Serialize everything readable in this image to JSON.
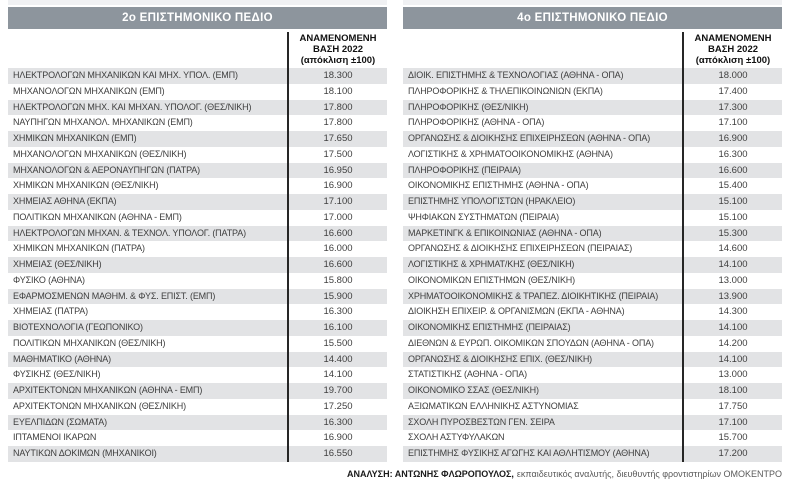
{
  "colors": {
    "title_bar_bg": "#8d959d",
    "title_text": "#ffffff",
    "row_stripe": "#e2e3e5",
    "divider_line": "#262626",
    "body_text": "#3e3e3e"
  },
  "value_header_lines": [
    "ΑΝΑΜΕΝΟΜΕΝΗ",
    "ΒΑΣΗ 2022",
    "(απόκλιση ±100)"
  ],
  "tables": [
    {
      "title": "2ο ΕΠΙΣΤΗΜΟΝΙΚΟ ΠΕΔΙΟ",
      "rows": [
        {
          "name": "ΗΛΕΚΤΡΟΛΟΓΩΝ ΜΗΧΑΝΙΚΩΝ ΚΑΙ ΜΗΧ. ΥΠΟΛ. (ΕΜΠ)",
          "value": "18.300"
        },
        {
          "name": "ΜΗΧΑΝΟΛΟΓΩΝ ΜΗΧΑΝΙΚΩΝ (ΕΜΠ)",
          "value": "18.100"
        },
        {
          "name": "ΗΛΕΚΤΡΟΛΟΓΩΝ ΜΗΧ. ΚΑΙ ΜΗΧΑΝ. ΥΠΟΛΟΓ. (ΘΕΣ/ΝΙΚΗ)",
          "value": "17.800"
        },
        {
          "name": "ΝΑΥΠΗΓΩΝ ΜΗΧΑΝΟΛ. ΜΗΧΑΝΙΚΩΝ (ΕΜΠ)",
          "value": "17.800"
        },
        {
          "name": "ΧΗΜΙΚΩΝ ΜΗΧΑΝΙΚΩΝ (ΕΜΠ)",
          "value": "17.650"
        },
        {
          "name": "ΜΗΧΑΝΟΛΟΓΩΝ ΜΗΧΑΝΙΚΩΝ (ΘΕΣ/ΝΙΚΗ)",
          "value": "17.500"
        },
        {
          "name": "ΜΗΧΑΝΟΛΟΓΩΝ & ΑΕΡΟΝΑΥΠΗΓΩΝ (ΠΑΤΡΑ)",
          "value": "16.950"
        },
        {
          "name": "ΧΗΜΙΚΩΝ ΜΗΧΑΝΙΚΩΝ (ΘΕΣ/ΝΙΚΗ)",
          "value": "16.900"
        },
        {
          "name": "ΧΗΜΕΙΑΣ ΑΘΗΝΑ (ΕΚΠΑ)",
          "value": "17.100"
        },
        {
          "name": "ΠΟΛΙΤΙΚΩΝ ΜΗΧΑΝΙΚΩΝ (ΑΘΗΝΑ - ΕΜΠ)",
          "value": "17.000"
        },
        {
          "name": "ΗΛΕΚΤΡΟΛΟΓΩΝ ΜΗΧΑΝ. & ΤΕΧΝΟΛ. ΥΠΟΛΟΓ. (ΠΑΤΡΑ)",
          "value": "16.600"
        },
        {
          "name": "ΧΗΜΙΚΩΝ ΜΗΧΑΝΙΚΩΝ (ΠΑΤΡΑ)",
          "value": "16.000"
        },
        {
          "name": "ΧΗΜΕΙΑΣ (ΘΕΣ/ΝΙΚΗ)",
          "value": "16.600"
        },
        {
          "name": "ΦΥΣΙΚΟ (ΑΘΗΝΑ)",
          "value": "15.800"
        },
        {
          "name": "ΕΦΑΡΜΟΣΜΕΝΩΝ ΜΑΘΗΜ. & ΦΥΣ. ΕΠΙΣΤ. (ΕΜΠ)",
          "value": "15.900"
        },
        {
          "name": "ΧΗΜΕΙΑΣ (ΠΑΤΡΑ)",
          "value": "16.300"
        },
        {
          "name": "ΒΙΟΤΕΧΝΟΛΟΓΙΑ (ΓΕΩΠΟΝΙΚΟ)",
          "value": "16.100"
        },
        {
          "name": "ΠΟΛΙΤΙΚΩΝ ΜΗΧΑΝΙΚΩΝ (ΘΕΣ/ΝΙΚΗ)",
          "value": "15.500"
        },
        {
          "name": "ΜΑΘΗΜΑΤΙΚΟ (ΑΘΗΝΑ)",
          "value": "14.400"
        },
        {
          "name": "ΦΥΣΙΚΗΣ (ΘΕΣ/ΝΙΚΗ)",
          "value": "14.100"
        },
        {
          "name": "ΑΡΧΙΤΕΚΤΟΝΩΝ ΜΗΧΑΝΙΚΩΝ (ΑΘΗΝΑ - ΕΜΠ)",
          "value": "19.700"
        },
        {
          "name": "ΑΡΧΙΤΕΚΤΟΝΩΝ ΜΗΧΑΝΙΚΩΝ (ΘΕΣ/ΝΙΚΗ)",
          "value": "17.250"
        },
        {
          "name": "ΕΥΕΛΠΙΔΩΝ (ΣΩΜΑΤΑ)",
          "value": "16.300"
        },
        {
          "name": "ΙΠΤΑΜΕΝΟΙ ΙΚΑΡΩΝ",
          "value": "16.900"
        },
        {
          "name": "ΝΑΥΤΙΚΩΝ ΔΟΚΙΜΩΝ (ΜΗΧΑΝΙΚΟΙ)",
          "value": "16.550"
        }
      ]
    },
    {
      "title": "4ο ΕΠΙΣΤΗΜΟΝΙΚΟ ΠΕΔΙΟ",
      "rows": [
        {
          "name": "ΔΙΟΙΚ. ΕΠΙΣΤΗΜΗΣ & ΤΕΧΝΟΛΟΓΙΑΣ (ΑΘΗΝΑ - ΟΠΑ)",
          "value": "18.000"
        },
        {
          "name": "ΠΛΗΡΟΦΟΡΙΚΗΣ & ΤΗΛΕΠΙΚΟΙΝΩΝΙΩΝ (ΕΚΠΑ)",
          "value": "17.400"
        },
        {
          "name": "ΠΛΗΡΟΦΟΡΙΚΗΣ (ΘΕΣ/ΝΙΚΗ)",
          "value": "17.300"
        },
        {
          "name": "ΠΛΗΡΟΦΟΡΙΚΗΣ (ΑΘΗΝΑ - ΟΠΑ)",
          "value": "17.100"
        },
        {
          "name": "ΟΡΓΑΝΩΣΗΣ & ΔΙΟΙΚΗΣΗΣ ΕΠΙΧΕΙΡΗΣΕΩΝ (ΑΘΗΝΑ - ΟΠΑ)",
          "value": "16.900"
        },
        {
          "name": "ΛΟΓΙΣΤΙΚΗΣ & ΧΡΗΜΑΤΟΟΙΚΟΝΟΜΙΚΗΣ (ΑΘΗΝΑ)",
          "value": "16.300"
        },
        {
          "name": "ΠΛΗΡΟΦΟΡΙΚΗΣ (ΠΕΙΡΑΙΑ)",
          "value": "16.600"
        },
        {
          "name": "ΟΙΚΟΝΟΜΙΚΗΣ ΕΠΙΣΤΗΜΗΣ (ΑΘΗΝΑ - ΟΠΑ)",
          "value": "15.400"
        },
        {
          "name": "ΕΠΙΣΤΗΜΗΣ ΥΠΟΛΟΓΙΣΤΩΝ (ΗΡΑΚΛΕΙΟ)",
          "value": "15.100"
        },
        {
          "name": "ΨΗΦΙΑΚΩΝ ΣΥΣΤΗΜΑΤΩΝ (ΠΕΙΡΑΙΑ)",
          "value": "15.100"
        },
        {
          "name": "ΜΑΡΚΕΤΙΝΓΚ & ΕΠΙΚΟΙΝΩΝΙΑΣ (ΑΘΗΝΑ - ΟΠΑ)",
          "value": "15.300"
        },
        {
          "name": "ΟΡΓΑΝΩΣΗΣ & ΔΙΟΙΚΗΣΗΣ ΕΠΙΧΕΙΡΗΣΕΩΝ (ΠΕΙΡΑΙΑΣ)",
          "value": "14.600"
        },
        {
          "name": "ΛΟΓΙΣΤΙΚΗΣ & ΧΡΗΜΑΤ/ΚΗΣ (ΘΕΣ/ΝΙΚΗ)",
          "value": "14.100"
        },
        {
          "name": "ΟΙΚΟΝΟΜΙΚΩΝ ΕΠΙΣΤΗΜΩΝ (ΘΕΣ/ΝΙΚΗ)",
          "value": "13.000"
        },
        {
          "name": "ΧΡΗΜΑΤΟΟΙΚΟΝΟΜΙΚΗΣ & ΤΡΑΠΕΖ. ΔΙΟΙΚΗΤΙΚΗΣ (ΠΕΙΡΑΙΑ)",
          "value": "13.900"
        },
        {
          "name": "ΔΙΟΙΚΗΣΗ ΕΠΙΧΕΙΡ. & ΟΡΓΑΝΙΣΜΩΝ (ΕΚΠΑ - ΑΘΗΝΑ)",
          "value": "14.300"
        },
        {
          "name": "ΟΙΚΟΝΟΜΙΚΗΣ ΕΠΙΣΤΗΜΗΣ (ΠΕΙΡΑΙΑΣ)",
          "value": "14.100"
        },
        {
          "name": "ΔΙΕΘΝΩΝ & ΕΥΡΩΠ. ΟΙΚΟΜΙΚΩΝ ΣΠΟΥΔΩΝ (ΑΘΗΝΑ - ΟΠΑ)",
          "value": "14.200"
        },
        {
          "name": "ΟΡΓΑΝΩΣΗΣ & ΔΙΟΙΚΗΣΗΣ ΕΠΙΧ. (ΘΕΣ/ΝΙΚΗ)",
          "value": "14.100"
        },
        {
          "name": "ΣΤΑΤΙΣΤΙΚΗΣ (ΑΘΗΝΑ - ΟΠΑ)",
          "value": "13.000"
        },
        {
          "name": "ΟΙΚΟΝΟΜΙΚΟ ΣΣΑΣ (ΘΕΣ/ΝΙΚΗ)",
          "value": "18.100"
        },
        {
          "name": "ΑΞΙΩΜΑΤΙΚΩΝ ΕΛΛΗΝΙΚΗΣ ΑΣΤΥΝΟΜΙΑΣ",
          "value": "17.750"
        },
        {
          "name": "ΣΧΟΛΗ ΠΥΡΟΣΒΕΣΤΩΝ ΓΕΝ. ΣΕΙΡΑ",
          "value": "17.100"
        },
        {
          "name": "ΣΧΟΛΗ ΑΣΤΥΦΥΛΑΚΩΝ",
          "value": "15.700"
        },
        {
          "name": "ΕΠΙΣΤΗΜΗΣ ΦΥΣΙΚΗΣ ΑΓΩΓΗΣ ΚΑΙ ΑΘΛΗΤΙΣΜΟΥ (ΑΘΗΝΑ)",
          "value": "17.200"
        }
      ]
    }
  ],
  "footer": {
    "bold": "ΑΝΑΛΥΣΗ: ΑΝΤΩΝΗΣ ΦΛΩΡΟΠΟΥΛΟΣ,",
    "regular": "εκπαιδευτικός αναλυτής,  διευθυντής φροντιστηρίων ΟΜΟΚΕΝΤΡΟ"
  }
}
